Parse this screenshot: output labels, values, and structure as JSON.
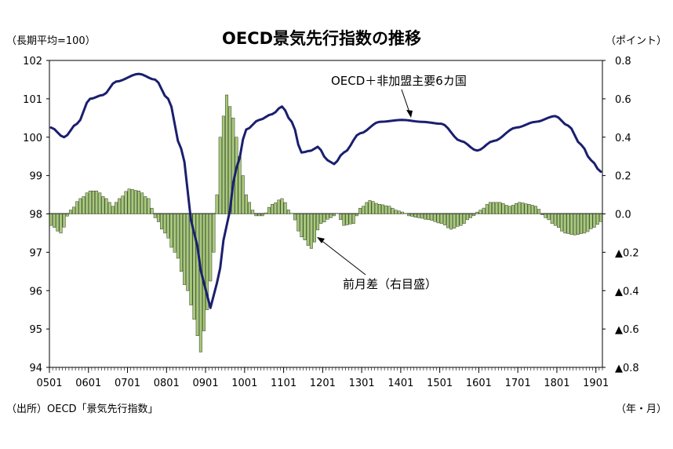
{
  "chart_data": {
    "type": "line+bar",
    "title": "OECD景気先行指数の推移",
    "left_unit": "（長期平均=100）",
    "right_unit": "（ポイント）",
    "x_unit": "（年・月）",
    "source": "（出所）OECD「景気先行指数」",
    "x_ticks": [
      "0501",
      "0601",
      "0701",
      "0801",
      "0901",
      "1001",
      "1101",
      "1201",
      "1301",
      "1401",
      "1501",
      "1601",
      "1701",
      "1801",
      "1901"
    ],
    "left_axis": {
      "min": 94,
      "max": 102,
      "ticks": [
        "94",
        "95",
        "96",
        "97",
        "98",
        "99",
        "100",
        "101",
        "102"
      ]
    },
    "right_axis": {
      "min": -0.8,
      "max": 0.8,
      "ticks": [
        "▲0.8",
        "▲0.6",
        "▲0.4",
        "▲0.2",
        "0.0",
        "0.2",
        "0.4",
        "0.6",
        "0.8"
      ]
    },
    "start_month": "2005-01",
    "end_month": "2019-02",
    "line_series": {
      "name": "OECD＋非加盟主要6カ国",
      "color": "#1a1f6e",
      "keypoints": [
        [
          "2005-01",
          100.25
        ],
        [
          "2005-05",
          100.0
        ],
        [
          "2005-09",
          100.35
        ],
        [
          "2006-01",
          101.0
        ],
        [
          "2006-05",
          101.1
        ],
        [
          "2006-09",
          101.45
        ],
        [
          "2007-04",
          101.65
        ],
        [
          "2007-09",
          101.5
        ],
        [
          "2008-01",
          101.0
        ],
        [
          "2008-05",
          99.7
        ],
        [
          "2008-09",
          97.5
        ],
        [
          "2008-12",
          96.2
        ],
        [
          "2009-02",
          95.55
        ],
        [
          "2009-04",
          96.2
        ],
        [
          "2009-07",
          97.7
        ],
        [
          "2009-10",
          99.2
        ],
        [
          "2010-01",
          100.2
        ],
        [
          "2010-05",
          100.45
        ],
        [
          "2010-09",
          100.6
        ],
        [
          "2010-12",
          100.8
        ],
        [
          "2011-03",
          100.4
        ],
        [
          "2011-06",
          99.6
        ],
        [
          "2011-09",
          99.65
        ],
        [
          "2011-11",
          99.75
        ],
        [
          "2012-02",
          99.4
        ],
        [
          "2012-04",
          99.3
        ],
        [
          "2012-07",
          99.6
        ],
        [
          "2012-12",
          100.1
        ],
        [
          "2013-06",
          100.4
        ],
        [
          "2014-01",
          100.45
        ],
        [
          "2014-07",
          100.4
        ],
        [
          "2015-01",
          100.35
        ],
        [
          "2015-07",
          99.9
        ],
        [
          "2015-12",
          99.65
        ],
        [
          "2016-05",
          99.9
        ],
        [
          "2016-12",
          100.25
        ],
        [
          "2017-06",
          100.4
        ],
        [
          "2017-12",
          100.55
        ],
        [
          "2018-04",
          100.3
        ],
        [
          "2018-08",
          99.8
        ],
        [
          "2018-11",
          99.4
        ],
        [
          "2019-02",
          99.1
        ]
      ]
    },
    "bar_series": {
      "name": "前月差（右目盛）",
      "fill": "#a6c97a",
      "keypoints": [
        [
          "2005-01",
          -0.06
        ],
        [
          "2005-04",
          -0.1
        ],
        [
          "2005-07",
          0.02
        ],
        [
          "2005-10",
          0.08
        ],
        [
          "2006-01",
          0.12
        ],
        [
          "2006-03",
          0.12
        ],
        [
          "2006-06",
          0.08
        ],
        [
          "2006-08",
          0.04
        ],
        [
          "2006-10",
          0.08
        ],
        [
          "2007-01",
          0.13
        ],
        [
          "2007-04",
          0.12
        ],
        [
          "2007-07",
          0.08
        ],
        [
          "2007-09",
          -0.02
        ],
        [
          "2007-12",
          -0.1
        ],
        [
          "2008-03",
          -0.2
        ],
        [
          "2008-07",
          -0.4
        ],
        [
          "2008-09",
          -0.55
        ],
        [
          "2008-11",
          -0.72
        ],
        [
          "2009-01",
          -0.5
        ],
        [
          "2009-03",
          -0.2
        ],
        [
          "2009-05",
          0.4
        ],
        [
          "2009-07",
          0.62
        ],
        [
          "2009-09",
          0.5
        ],
        [
          "2009-11",
          0.3
        ],
        [
          "2010-01",
          0.1
        ],
        [
          "2010-03",
          0.02
        ],
        [
          "2010-04",
          -0.01
        ],
        [
          "2010-06",
          -0.01
        ],
        [
          "2010-09",
          0.05
        ],
        [
          "2010-12",
          0.08
        ],
        [
          "2011-03",
          0.0
        ],
        [
          "2011-06",
          -0.12
        ],
        [
          "2011-09",
          -0.18
        ],
        [
          "2011-12",
          -0.05
        ],
        [
          "2012-03",
          -0.02
        ],
        [
          "2012-05",
          0.0
        ],
        [
          "2012-07",
          -0.06
        ],
        [
          "2012-10",
          -0.05
        ],
        [
          "2012-12",
          0.03
        ],
        [
          "2013-03",
          0.07
        ],
        [
          "2013-06",
          0.05
        ],
        [
          "2013-09",
          0.04
        ],
        [
          "2013-11",
          0.02
        ],
        [
          "2014-01",
          0.01
        ],
        [
          "2014-03",
          -0.01
        ],
        [
          "2014-06",
          -0.02
        ],
        [
          "2014-09",
          -0.03
        ],
        [
          "2015-01",
          -0.05
        ],
        [
          "2015-04",
          -0.08
        ],
        [
          "2015-07",
          -0.06
        ],
        [
          "2015-10",
          -0.02
        ],
        [
          "2016-01",
          0.02
        ],
        [
          "2016-04",
          0.06
        ],
        [
          "2016-07",
          0.06
        ],
        [
          "2016-10",
          0.04
        ],
        [
          "2017-01",
          0.06
        ],
        [
          "2017-04",
          0.05
        ],
        [
          "2017-06",
          0.04
        ],
        [
          "2017-09",
          -0.02
        ],
        [
          "2017-12",
          -0.06
        ],
        [
          "2018-03",
          -0.1
        ],
        [
          "2018-06",
          -0.11
        ],
        [
          "2018-09",
          -0.1
        ],
        [
          "2018-12",
          -0.07
        ],
        [
          "2019-02",
          -0.04
        ]
      ]
    },
    "annotations": [
      {
        "text": "OECD＋非加盟主要6カ国",
        "target": "line",
        "at": "2014-01"
      },
      {
        "text": "前月差（右目盛）",
        "target": "bars",
        "at": "2011-10"
      }
    ]
  }
}
